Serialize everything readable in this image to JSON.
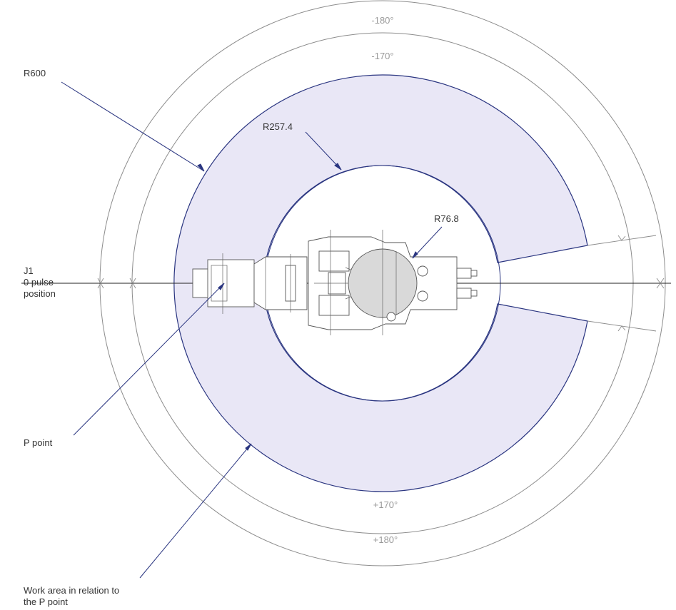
{
  "labels": {
    "r600": "R600",
    "r257": "R257.4",
    "r76": "R76.8",
    "j1_line1": "J1",
    "j1_line2": "0 pulse",
    "j1_line3": "position",
    "p_point": "P point",
    "work_area_line1": "Work area in relation to",
    "work_area_line2": "the P point",
    "deg_m180": "-180°",
    "deg_m170": "-170°",
    "deg_p170": "+170°",
    "deg_p180": "+180°"
  },
  "colors": {
    "work_area_fill": "#e9e7f6",
    "work_area_stroke": "#2a3580",
    "leader": "#2a3580",
    "limit_circle": "#8c8c8c",
    "axis": "#222222",
    "degree_text": "#9a9a9a"
  }
}
